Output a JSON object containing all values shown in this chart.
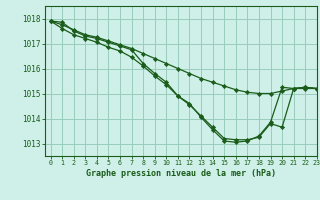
{
  "title": "Graphe pression niveau de la mer (hPa)",
  "bg_color": "#cff0e8",
  "grid_color": "#99ccbb",
  "line_color": "#1a5c1a",
  "marker_color": "#1a5c1a",
  "xlim": [
    -0.5,
    23
  ],
  "ylim": [
    1012.5,
    1018.5
  ],
  "yticks": [
    1013,
    1014,
    1015,
    1016,
    1017,
    1018
  ],
  "xticks": [
    0,
    1,
    2,
    3,
    4,
    5,
    6,
    7,
    8,
    9,
    10,
    11,
    12,
    13,
    14,
    15,
    16,
    17,
    18,
    19,
    20,
    21,
    22,
    23
  ],
  "series": [
    [
      1017.9,
      1017.75,
      1017.55,
      1017.35,
      1017.25,
      1017.1,
      1016.95,
      1016.8,
      1016.6,
      1016.4,
      1016.2,
      1016.0,
      1015.8,
      1015.6,
      1015.45,
      1015.3,
      1015.15,
      1015.05,
      1015.0,
      1015.0,
      1015.1,
      1015.2,
      1015.25,
      1015.2
    ],
    [
      1017.9,
      1017.6,
      1017.35,
      1017.2,
      1017.05,
      1016.85,
      1016.7,
      1016.45,
      1016.1,
      1015.7,
      1015.35,
      1014.9,
      1014.55,
      1014.1,
      1013.65,
      1013.2,
      1013.15,
      1013.15,
      1013.25,
      1013.8,
      1013.65,
      1015.2,
      1015.25,
      1015.2
    ],
    [
      1017.9,
      1017.85,
      1017.5,
      1017.3,
      1017.2,
      1017.05,
      1016.9,
      1016.75,
      1016.2,
      1015.8,
      1015.45,
      1014.9,
      1014.6,
      1014.05,
      1013.55,
      1013.1,
      1013.05,
      1013.1,
      1013.3,
      1013.85,
      1015.25,
      1015.2,
      1015.2,
      1015.2
    ]
  ]
}
